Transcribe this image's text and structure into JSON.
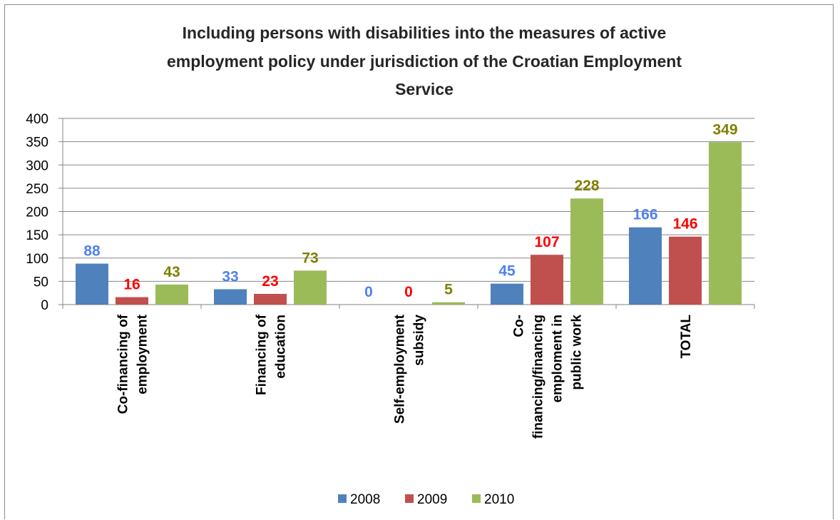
{
  "chart_data": {
    "type": "bar",
    "title_lines": [
      "Including persons with disabilities into the measures of active",
      "employment policy under jurisdiction of the Croatian Employment",
      "Service"
    ],
    "categories": [
      [
        "Co-financing of",
        "employment"
      ],
      [
        "Financing of",
        "education"
      ],
      [
        "Self-employment",
        "subsidy"
      ],
      [
        "Co-",
        "financing/financing",
        "emploment in",
        "public work"
      ],
      [
        "TOTAL"
      ]
    ],
    "series": [
      {
        "name": "2008",
        "values": [
          88,
          33,
          0,
          45,
          166
        ],
        "color": "#4f81bd",
        "label_color": "#4f81f0"
      },
      {
        "name": "2009",
        "values": [
          16,
          23,
          0,
          107,
          146
        ],
        "color": "#c0504d",
        "label_color": "#ff0000"
      },
      {
        "name": "2010",
        "values": [
          43,
          73,
          5,
          228,
          349
        ],
        "color": "#9bbb59",
        "label_color": "#808000"
      }
    ],
    "ylim": [
      0,
      400
    ],
    "yticks": [
      0,
      50,
      100,
      150,
      200,
      250,
      300,
      350,
      400
    ],
    "grid": true,
    "legend_position": "bottom"
  }
}
